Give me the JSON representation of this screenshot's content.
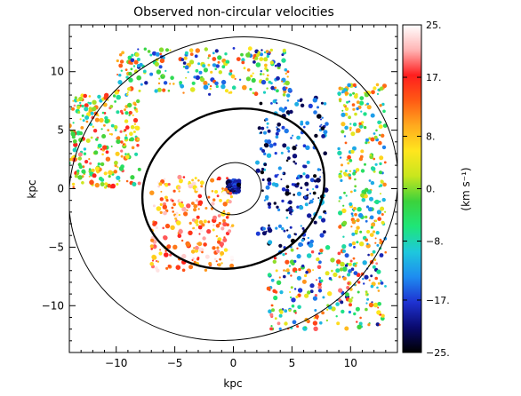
{
  "chart_data": {
    "type": "heatmap",
    "title": "Observed non-circular velocities",
    "xlabel": "kpc",
    "ylabel": "kpc",
    "xlim": [
      -14,
      14
    ],
    "ylim": [
      -14,
      14
    ],
    "xticks": [
      -10,
      -5,
      0,
      5,
      10
    ],
    "yticks": [
      -10,
      -5,
      0,
      5,
      10
    ],
    "colorbar": {
      "label": "(km s⁻¹)",
      "range": [
        -25,
        25
      ],
      "ticks": [
        {
          "value": 25,
          "label": "25."
        },
        {
          "value": 17,
          "label": "17."
        },
        {
          "value": 8,
          "label": "8."
        },
        {
          "value": 0,
          "label": "0."
        },
        {
          "value": -8,
          "label": "-8."
        },
        {
          "value": -17,
          "label": "-17."
        },
        {
          "value": -25,
          "label": "-25."
        }
      ],
      "colors": [
        "#000000",
        "#0a0a6e",
        "#1e32d2",
        "#1e8cf0",
        "#1ec8dc",
        "#1ee678",
        "#3cd23c",
        "#c8e61e",
        "#ffe61e",
        "#ffaa1e",
        "#ff5a14",
        "#ff1e1e",
        "#ffb4b4",
        "#ffffff"
      ]
    },
    "overlay_ellipses": [
      {
        "name": "inner",
        "center": [
          0,
          0
        ],
        "semi_axes": [
          2.4,
          2.2
        ],
        "tilt_deg": 20,
        "thick": false
      },
      {
        "name": "middle",
        "center": [
          0,
          0
        ],
        "semi_axes": [
          7.9,
          6.7
        ],
        "tilt_deg": 20,
        "thick": true
      },
      {
        "name": "outer",
        "center": [
          0,
          0
        ],
        "semi_axes": [
          14.2,
          12.8
        ],
        "tilt_deg": 20,
        "thick": false
      }
    ],
    "features": [
      {
        "name": "nucleus",
        "x": [
          -0.5,
          0.5
        ],
        "y": [
          -0.3,
          0.7
        ],
        "velocity": [
          -25,
          -15
        ]
      },
      {
        "name": "north-east arm",
        "x": [
          2,
          8
        ],
        "y": [
          -5,
          8
        ],
        "velocity": [
          -25,
          -10
        ]
      },
      {
        "name": "north outer arc",
        "x": [
          -10,
          5
        ],
        "y": [
          8,
          12
        ],
        "velocity": [
          -20,
          15
        ]
      },
      {
        "name": "west outer arc",
        "x": [
          -14,
          -8
        ],
        "y": [
          0,
          8
        ],
        "velocity": [
          -10,
          20
        ]
      },
      {
        "name": "south-east outer arc",
        "x": [
          3,
          13
        ],
        "y": [
          -12,
          -5
        ],
        "velocity": [
          -20,
          20
        ]
      },
      {
        "name": "south-west inner region",
        "x": [
          -7,
          0
        ],
        "y": [
          -7,
          1
        ],
        "velocity": [
          5,
          25
        ]
      },
      {
        "name": "east ring",
        "x": [
          9,
          13
        ],
        "y": [
          -5,
          9
        ],
        "velocity": [
          -15,
          15
        ]
      }
    ]
  }
}
